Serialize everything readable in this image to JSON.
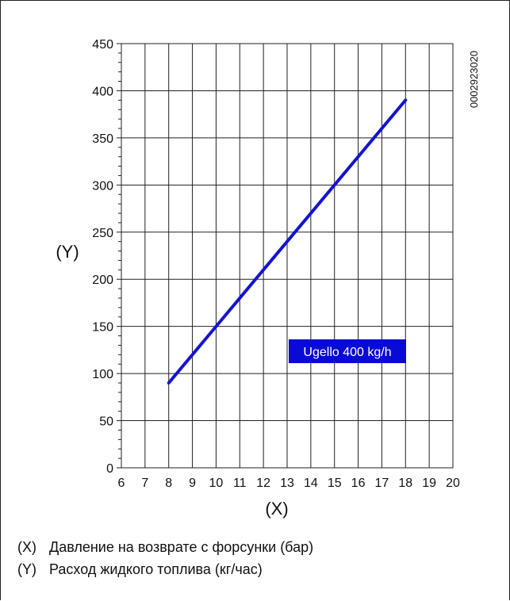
{
  "chart_data": {
    "type": "line",
    "x_axis_label": "(X)",
    "y_axis_label": "(Y)",
    "xlim": [
      6,
      20
    ],
    "ylim": [
      0,
      450
    ],
    "x_ticks": [
      "6",
      "7",
      "8",
      "9",
      "10",
      "11",
      "12",
      "13",
      "14",
      "15",
      "16",
      "17",
      "18",
      "19",
      "20"
    ],
    "y_ticks": [
      "0",
      "50",
      "100",
      "150",
      "200",
      "250",
      "300",
      "350",
      "400",
      "450"
    ],
    "grid": true,
    "series": [
      {
        "name": "Ugello 400 kg/h",
        "color": "#1414d2",
        "x": [
          8,
          18
        ],
        "y": [
          90,
          390
        ]
      }
    ],
    "annotation": {
      "text": "Ugello 400 kg/h",
      "background": "#0a0ad6",
      "color": "#ffffff"
    },
    "figure_code": "0002923020"
  },
  "legend": {
    "x_key": "(X)",
    "x_text": "Давление на возврате с форсунки (бар)",
    "y_key": "(Y)",
    "y_text": "Расход жидкого топлива (кг/час)"
  }
}
